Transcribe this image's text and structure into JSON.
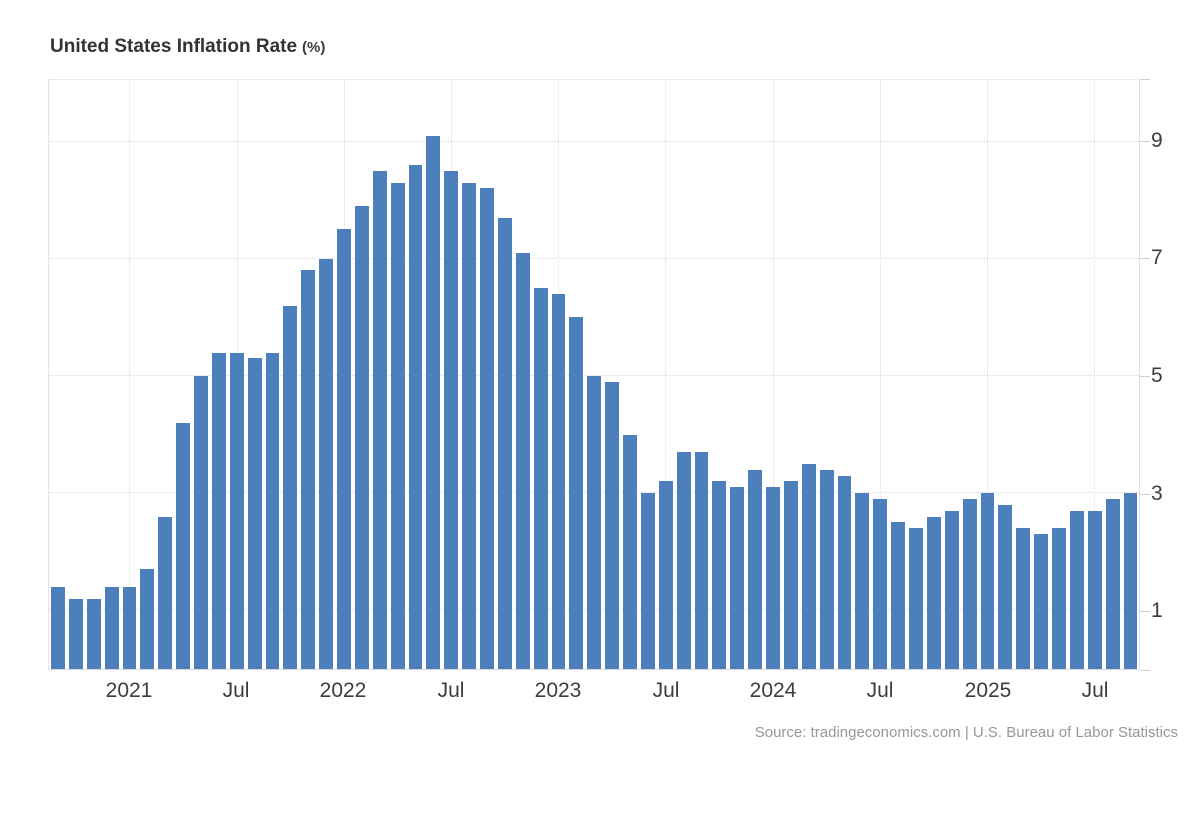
{
  "header": {
    "title": "United States Inflation Rate",
    "unit_suffix": "(%)"
  },
  "footer": {
    "source_text": "Source: tradingeconomics.com | U.S. Bureau of Labor Statistics"
  },
  "chart_data": {
    "type": "bar",
    "title": "United States Inflation Rate (%)",
    "series_name": "Inflation Rate YoY (%)",
    "months": [
      "2020-09",
      "2020-10",
      "2020-11",
      "2020-12",
      "2021-01",
      "2021-02",
      "2021-03",
      "2021-04",
      "2021-05",
      "2021-06",
      "2021-07",
      "2021-08",
      "2021-09",
      "2021-10",
      "2021-11",
      "2021-12",
      "2022-01",
      "2022-02",
      "2022-03",
      "2022-04",
      "2022-05",
      "2022-06",
      "2022-07",
      "2022-08",
      "2022-09",
      "2022-10",
      "2022-11",
      "2022-12",
      "2023-01",
      "2023-02",
      "2023-03",
      "2023-04",
      "2023-05",
      "2023-06",
      "2023-07",
      "2023-08",
      "2023-09",
      "2023-10",
      "2023-11",
      "2023-12",
      "2024-01",
      "2024-02",
      "2024-03",
      "2024-04",
      "2024-05",
      "2024-06",
      "2024-07",
      "2024-08",
      "2024-09",
      "2024-10",
      "2024-11",
      "2024-12",
      "2025-01",
      "2025-02",
      "2025-03",
      "2025-04",
      "2025-05",
      "2025-06",
      "2025-07",
      "2025-08",
      "2025-09"
    ],
    "values": [
      1.4,
      1.2,
      1.2,
      1.4,
      1.4,
      1.7,
      2.6,
      4.2,
      5.0,
      5.4,
      5.4,
      5.3,
      5.4,
      6.2,
      6.8,
      7.0,
      7.5,
      7.9,
      8.5,
      8.3,
      8.6,
      9.1,
      8.5,
      8.3,
      8.2,
      7.7,
      7.1,
      6.5,
      6.4,
      6.0,
      5.0,
      4.9,
      4.0,
      3.0,
      3.2,
      3.7,
      3.7,
      3.2,
      3.1,
      3.4,
      3.1,
      3.2,
      3.5,
      3.4,
      3.3,
      3.0,
      2.9,
      2.5,
      2.4,
      2.6,
      2.7,
      2.9,
      3.0,
      2.8,
      2.4,
      2.3,
      2.4,
      2.7,
      2.7,
      2.9,
      3.0
    ],
    "x_ticks": [
      {
        "index": 4,
        "label": "2021"
      },
      {
        "index": 10,
        "label": "Jul"
      },
      {
        "index": 16,
        "label": "2022"
      },
      {
        "index": 22,
        "label": "Jul"
      },
      {
        "index": 28,
        "label": "2023"
      },
      {
        "index": 34,
        "label": "Jul"
      },
      {
        "index": 40,
        "label": "2024"
      },
      {
        "index": 46,
        "label": "Jul"
      },
      {
        "index": 52,
        "label": "2025"
      },
      {
        "index": 58,
        "label": "Jul"
      }
    ],
    "y_ticks": [
      1,
      3,
      5,
      7,
      9
    ],
    "ylim": [
      0,
      10.05
    ],
    "grid": "dotted",
    "legend": "none",
    "bar_color": "#4e7fbd",
    "axis_label_color": "#3d3d3d",
    "title_color": "#333333",
    "source_color": "#979797"
  }
}
